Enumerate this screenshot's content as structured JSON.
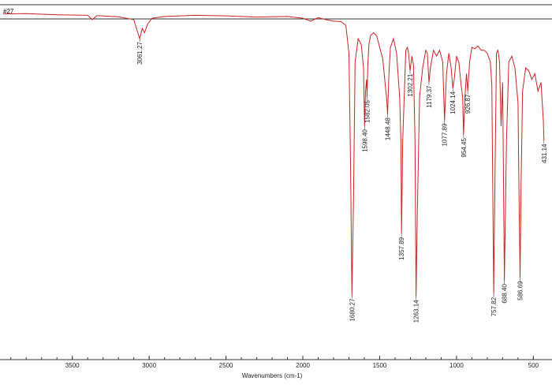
{
  "window": {
    "sample_label": "#27"
  },
  "chart_data": {
    "type": "line",
    "title": "",
    "xlabel": "Wavenumbers (cm-1)",
    "ylabel": "",
    "xlim": [
      3950,
      430
    ],
    "ylim": [
      0,
      100
    ],
    "x_reversed": true,
    "grid": false,
    "legend": "none",
    "line_color": "#cc2222",
    "x_ticks": [
      3500,
      3000,
      2500,
      2000,
      1500,
      1000,
      500
    ],
    "x_tick_labels": [
      "3500",
      "3000",
      "2500",
      "2000",
      "1500",
      "1000",
      "500"
    ],
    "series": [
      {
        "x": [
          3950,
          3800,
          3600,
          3400,
          3370,
          3340,
          3200,
          3100,
          3080,
          3061.27,
          3045,
          3030,
          3010,
          2980,
          2900,
          2700,
          2500,
          2300,
          2100,
          2000,
          1950,
          1900,
          1850,
          1800,
          1750,
          1720,
          1700,
          1690,
          1680.27,
          1670,
          1660,
          1640,
          1620,
          1605,
          1598.4,
          1592,
          1585,
          1582.05,
          1578,
          1570,
          1560,
          1540,
          1520,
          1500,
          1480,
          1460,
          1455,
          1448.48,
          1440,
          1430,
          1410,
          1390,
          1370,
          1362,
          1357.89,
          1350,
          1330,
          1320,
          1312,
          1302.21,
          1290,
          1280,
          1270,
          1263.14,
          1255,
          1240,
          1220,
          1200,
          1190,
          1179.37,
          1170,
          1150,
          1130,
          1110,
          1090,
          1077.89,
          1065,
          1050,
          1035,
          1024.14,
          1015,
          1000,
          985,
          970,
          960,
          954.45,
          945,
          935,
          926.87,
          915,
          900,
          880,
          860,
          840,
          820,
          800,
          780,
          770,
          757.82,
          750,
          740,
          730,
          720,
          710,
          700,
          688.4,
          675,
          660,
          640,
          620,
          600,
          595,
          586.69,
          580,
          570,
          550,
          530,
          510,
          490,
          470,
          450,
          435,
          431.14
        ],
        "y": [
          98.5,
          98.6,
          98.2,
          98.0,
          96.5,
          97.9,
          97.5,
          96.5,
          93.0,
          90.0,
          93.5,
          92.0,
          95.0,
          97.0,
          97.6,
          98.0,
          97.8,
          97.4,
          97.6,
          97.0,
          96.0,
          97.2,
          96.5,
          96.0,
          95.8,
          94.5,
          85.0,
          50.0,
          2.0,
          35.0,
          82.0,
          90.0,
          88.0,
          80.0,
          60.0,
          72.0,
          76.0,
          70.0,
          80.0,
          88.0,
          91.0,
          92.0,
          91.0,
          87.0,
          83.0,
          72.0,
          70.0,
          64.0,
          78.0,
          87.0,
          90.0,
          85.0,
          70.0,
          55.0,
          23.0,
          55.0,
          86.0,
          87.0,
          85.0,
          79.0,
          84.0,
          81.0,
          55.0,
          1.5,
          30.0,
          70.0,
          80.0,
          86.0,
          85.0,
          75.0,
          80.0,
          86.0,
          84.0,
          86.0,
          82.0,
          62.0,
          78.0,
          85.0,
          80.0,
          73.0,
          76.0,
          84.0,
          82.0,
          74.0,
          70.0,
          57.0,
          70.0,
          78.0,
          72.0,
          82.0,
          87.0,
          86.5,
          87.5,
          86.0,
          86.0,
          85.0,
          82.0,
          74.0,
          2.5,
          40.0,
          85.0,
          86.0,
          82.0,
          60.0,
          75.0,
          7.0,
          55.0,
          82.0,
          84.0,
          80.0,
          68.0,
          45.0,
          8.0,
          40.0,
          72.0,
          80.0,
          79.0,
          76.0,
          78.0,
          72.0,
          75.0,
          62.0,
          55.0
        ]
      }
    ],
    "peak_labels": [
      {
        "x": 3061.27,
        "text": "3061.27"
      },
      {
        "x": 1680.27,
        "text": "1680.27"
      },
      {
        "x": 1598.4,
        "text": "1598.40"
      },
      {
        "x": 1582.05,
        "text": "1582.05"
      },
      {
        "x": 1448.48,
        "text": "1448.48"
      },
      {
        "x": 1357.89,
        "text": "1357.89"
      },
      {
        "x": 1302.21,
        "text": "1302.21"
      },
      {
        "x": 1263.14,
        "text": "1263.14"
      },
      {
        "x": 1179.37,
        "text": "1179.37"
      },
      {
        "x": 1077.89,
        "text": "1077.89"
      },
      {
        "x": 1024.14,
        "text": "1024.14"
      },
      {
        "x": 954.45,
        "text": "954.45"
      },
      {
        "x": 926.87,
        "text": "926.87"
      },
      {
        "x": 757.82,
        "text": "757.82"
      },
      {
        "x": 688.4,
        "text": "688.40"
      },
      {
        "x": 586.69,
        "text": "586.69"
      },
      {
        "x": 431.14,
        "text": "431.14"
      }
    ]
  }
}
